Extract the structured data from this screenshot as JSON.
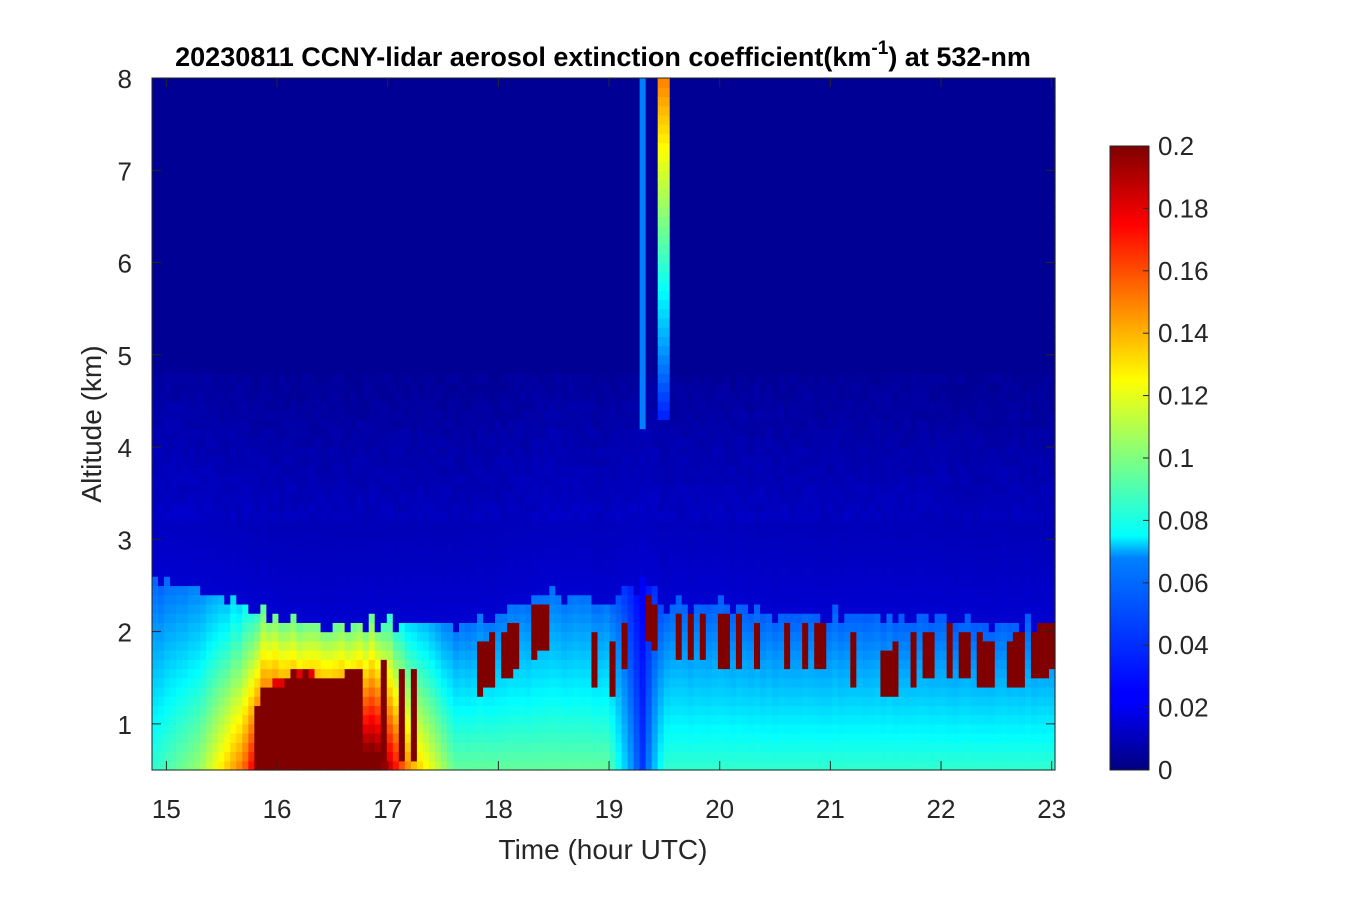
{
  "chart_data": {
    "type": "heatmap",
    "title": {
      "prefix": "20230811 CCNY-lidar aerosol extinction coefficient(km",
      "superscript": "-1",
      "suffix": ") at 532-nm"
    },
    "xlabel": "Time (hour UTC)",
    "ylabel": "Altitude (km)",
    "xlim": [
      14.87,
      23.03
    ],
    "ylim": [
      0.5,
      8.0
    ],
    "x_ticks": [
      "15",
      "16",
      "17",
      "18",
      "19",
      "20",
      "21",
      "22",
      "23"
    ],
    "y_ticks": [
      "1",
      "2",
      "3",
      "4",
      "5",
      "6",
      "7",
      "8"
    ],
    "colorbar": {
      "min": 0,
      "max": 0.2,
      "ticks": [
        "0",
        "0.02",
        "0.04",
        "0.06",
        "0.08",
        "0.1",
        "0.12",
        "0.14",
        "0.16",
        "0.18",
        "0.2"
      ],
      "colormap": "jet"
    },
    "values_note_units": "km^-1",
    "column_profiles": [
      {
        "t": 14.9,
        "pbl": 2.6,
        "top": 0.0,
        "surface": 0.07
      },
      {
        "t": 15.3,
        "pbl": 2.4,
        "top": 0.0,
        "surface": 0.09
      },
      {
        "t": 15.7,
        "pbl": 2.3,
        "top": 1.0,
        "surface": 0.14
      },
      {
        "t": 15.9,
        "pbl": 2.2,
        "top": 1.4,
        "surface": 0.2
      },
      {
        "t": 16.2,
        "pbl": 2.1,
        "top": 1.6,
        "surface": 0.2
      },
      {
        "t": 16.5,
        "pbl": 2.1,
        "top": 1.5,
        "surface": 0.2
      },
      {
        "t": 16.9,
        "pbl": 2.1,
        "top": 1.7,
        "surface": 0.2
      },
      {
        "t": 17.2,
        "pbl": 2.1,
        "top": 1.6,
        "surface": 0.13
      },
      {
        "t": 17.6,
        "pbl": 2.1,
        "top": 1.7,
        "surface": 0.08
      },
      {
        "t": 18.0,
        "pbl": 2.2,
        "top": 2.0,
        "surface": 0.08
      },
      {
        "t": 18.5,
        "pbl": 2.4,
        "top": 2.4,
        "surface": 0.08
      },
      {
        "t": 19.0,
        "pbl": 2.3,
        "top": 1.8,
        "surface": 0.08
      },
      {
        "t": 19.3,
        "pbl": 2.5,
        "top": 2.5,
        "surface": 0.02
      },
      {
        "t": 19.5,
        "pbl": 2.3,
        "top": 2.2,
        "surface": 0.07
      },
      {
        "t": 20.0,
        "pbl": 2.3,
        "top": 2.2,
        "surface": 0.07
      },
      {
        "t": 20.5,
        "pbl": 2.2,
        "top": 2.1,
        "surface": 0.07
      },
      {
        "t": 21.0,
        "pbl": 2.2,
        "top": 2.1,
        "surface": 0.07
      },
      {
        "t": 21.5,
        "pbl": 2.2,
        "top": 1.8,
        "surface": 0.07
      },
      {
        "t": 22.0,
        "pbl": 2.1,
        "top": 2.1,
        "surface": 0.07
      },
      {
        "t": 22.5,
        "pbl": 2.1,
        "top": 1.9,
        "surface": 0.07
      },
      {
        "t": 23.0,
        "pbl": 2.1,
        "top": 2.1,
        "surface": 0.07
      }
    ],
    "high_plume": {
      "t": 19.5,
      "altitude_range": [
        4.3,
        8.0
      ],
      "max_value": 0.15
    }
  }
}
